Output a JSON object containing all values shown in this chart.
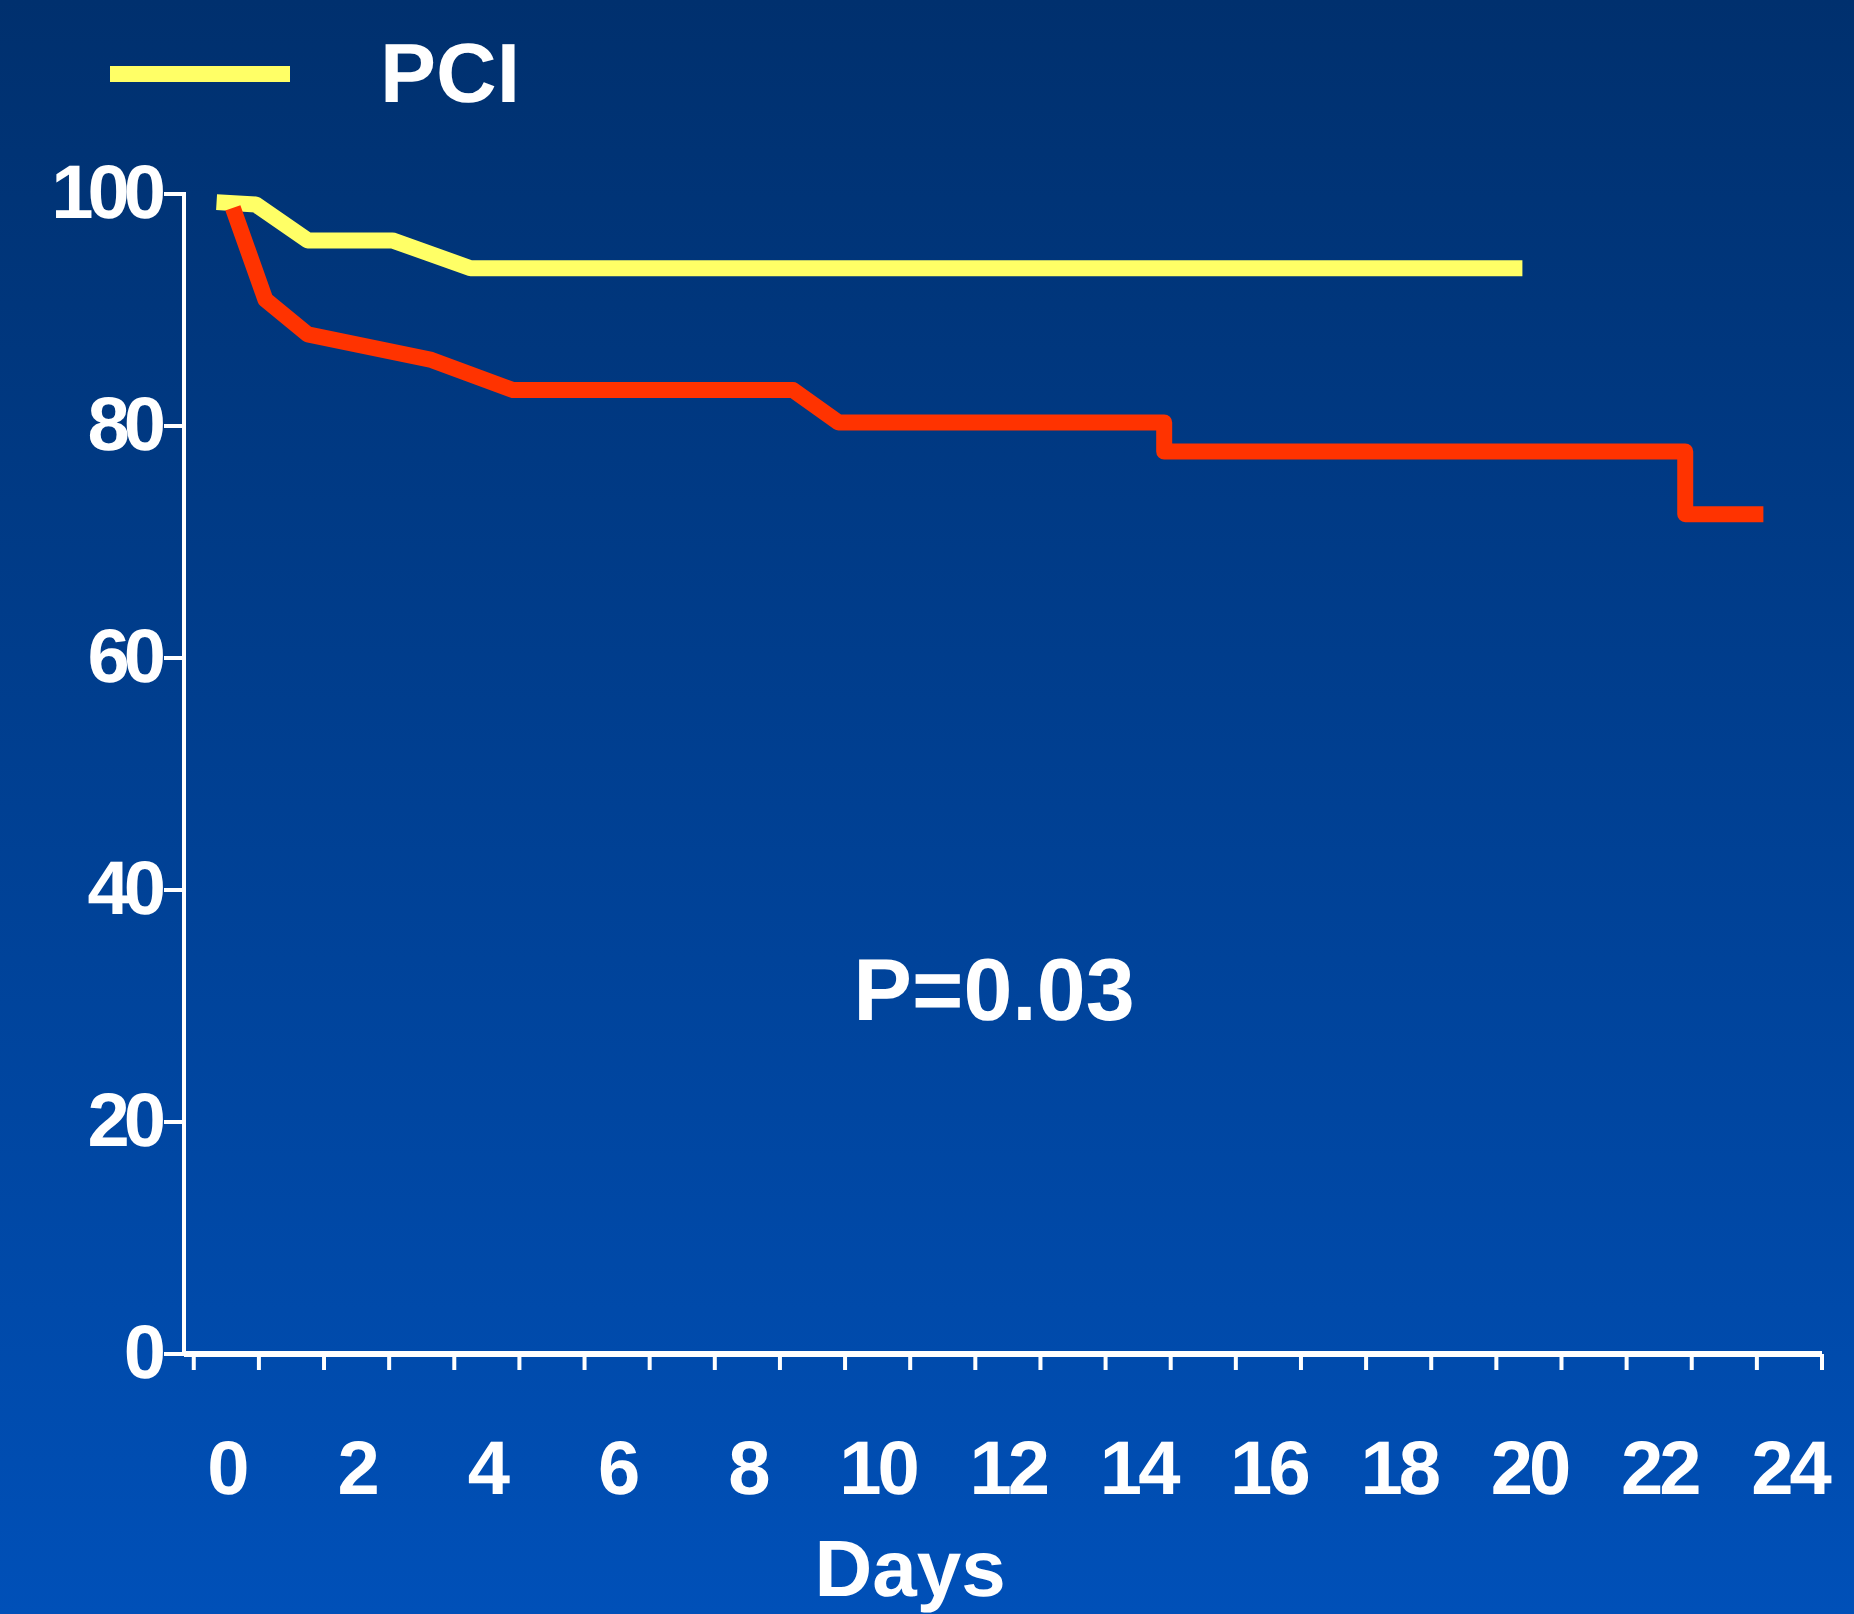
{
  "chart_data": {
    "type": "line",
    "xlabel": "Days",
    "annotations": [
      "P=0.03"
    ],
    "legend": "top left",
    "grid": false,
    "marker": "none",
    "line_style": "solid",
    "xlim": [
      -0.65,
      24.5
    ],
    "ylim": [
      0,
      100
    ],
    "yticks": [
      0,
      20,
      40,
      60,
      80,
      100
    ],
    "xticks": [
      {
        "value": -0.5,
        "label": null
      },
      0,
      {
        "value": 0.5,
        "label": null
      },
      {
        "value": 1.5,
        "label": null
      },
      2,
      {
        "value": 2.5,
        "label": null
      },
      {
        "value": 3.5,
        "label": null
      },
      4,
      {
        "value": 4.5,
        "label": null
      },
      {
        "value": 5.5,
        "label": null
      },
      6,
      {
        "value": 6.5,
        "label": null
      },
      {
        "value": 7.5,
        "label": null
      },
      8,
      {
        "value": 8.5,
        "label": null
      },
      {
        "value": 9.5,
        "label": null
      },
      10,
      {
        "value": 10.5,
        "label": null
      },
      {
        "value": 11.5,
        "label": null
      },
      12,
      {
        "value": 12.5,
        "label": null
      },
      {
        "value": 13.5,
        "label": null
      },
      14,
      {
        "value": 14.5,
        "label": null
      },
      {
        "value": 15.5,
        "label": null
      },
      16,
      {
        "value": 16.5,
        "label": null
      },
      {
        "value": 17.5,
        "label": null
      },
      18,
      {
        "value": 18.5,
        "label": null
      },
      {
        "value": 19.5,
        "label": null
      },
      20,
      {
        "value": 20.5,
        "label": null
      },
      {
        "value": 21.5,
        "label": null
      },
      22,
      {
        "value": 22.5,
        "label": null
      },
      {
        "value": 23.5,
        "label": null
      },
      24,
      {
        "value": 24.5,
        "label": null
      }
    ],
    "series": [
      {
        "name": "PCI",
        "color": "#ffff66",
        "x": [
          -0.15,
          0.45,
          1.25,
          2.55,
          3.75,
          19.9
        ],
        "values": [
          99.3,
          99.1,
          96,
          96,
          93.6,
          93.6
        ]
      },
      {
        "color": "#ff3300",
        "x": [
          0.1,
          0.6,
          1.25,
          3.15,
          4.4,
          8.7,
          9.4,
          14.4,
          14.4,
          22.4,
          22.4,
          23.6
        ],
        "values": [
          98.8,
          90.9,
          87.9,
          85.7,
          83.1,
          83.1,
          80.3,
          80.3,
          77.8,
          77.8,
          72.4,
          72.4
        ]
      }
    ]
  }
}
